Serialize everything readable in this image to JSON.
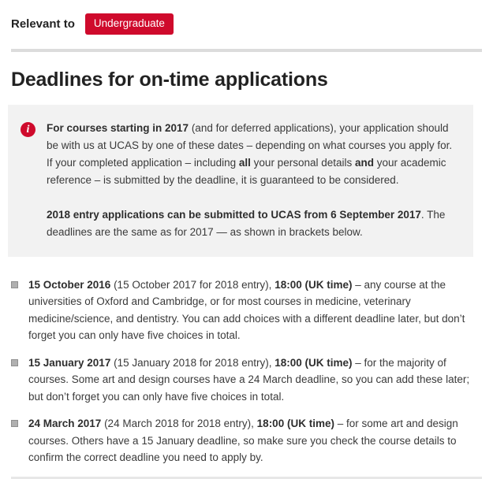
{
  "header": {
    "relevant_to_label": "Relevant to",
    "badge_label": "Undergraduate"
  },
  "page": {
    "title": "Deadlines for on-time applications"
  },
  "icons": {
    "info_icon_glyph": "i"
  },
  "colors": {
    "accent_red": "#cf0a2c",
    "info_box_bg": "#f2f2f2",
    "divider": "#dcdcdc",
    "bullet_gray": "#b0b0b0"
  },
  "info_box": {
    "p1": [
      {
        "text": "For courses starting in 2017",
        "bold": true
      },
      {
        "text": " (and for deferred applications), your application should be with us at UCAS by one of these dates – depending on what courses you apply for. If your completed application – including ",
        "bold": false
      },
      {
        "text": "all",
        "bold": true
      },
      {
        "text": " your personal details ",
        "bold": false
      },
      {
        "text": "and",
        "bold": true
      },
      {
        "text": " your academic reference – is submitted by the deadline, it is guaranteed to be considered.",
        "bold": false
      }
    ],
    "p2": [
      {
        "text": "2018 entry applications can be submitted to UCAS from 6 September 2017",
        "bold": true
      },
      {
        "text": ". The deadlines are the same as for 2017 — as shown in brackets below.",
        "bold": false
      }
    ]
  },
  "deadlines": [
    {
      "segments": [
        {
          "text": "15 October 2016",
          "bold": true
        },
        {
          "text": " (15 October 2017 for 2018 entry), ",
          "bold": false
        },
        {
          "text": "18:00 (UK time)",
          "bold": true
        },
        {
          "text": " – any course at the universities of Oxford and Cambridge, or for most courses in medicine, veterinary medicine/science, and dentistry. You can add choices with a different deadline later, but don’t forget you can only have five choices in total.",
          "bold": false
        }
      ]
    },
    {
      "segments": [
        {
          "text": "15 January 2017",
          "bold": true
        },
        {
          "text": " (15 January 2018 for 2018 entry), ",
          "bold": false
        },
        {
          "text": "18:00 (UK time)",
          "bold": true
        },
        {
          "text": " – for the majority of courses. Some art and design courses have a 24 March deadline, so you can add these later; but don’t forget you can only have five choices in total.",
          "bold": false
        }
      ]
    },
    {
      "segments": [
        {
          "text": "24 March 2017",
          "bold": true
        },
        {
          "text": " (24 March 2018 for 2018 entry), ",
          "bold": false
        },
        {
          "text": "18:00 (UK time)",
          "bold": true
        },
        {
          "text": " – for some art and design courses. Others have a 15 January deadline, so make sure you check the course details to confirm the correct deadline you need to apply by.",
          "bold": false
        }
      ]
    }
  ]
}
